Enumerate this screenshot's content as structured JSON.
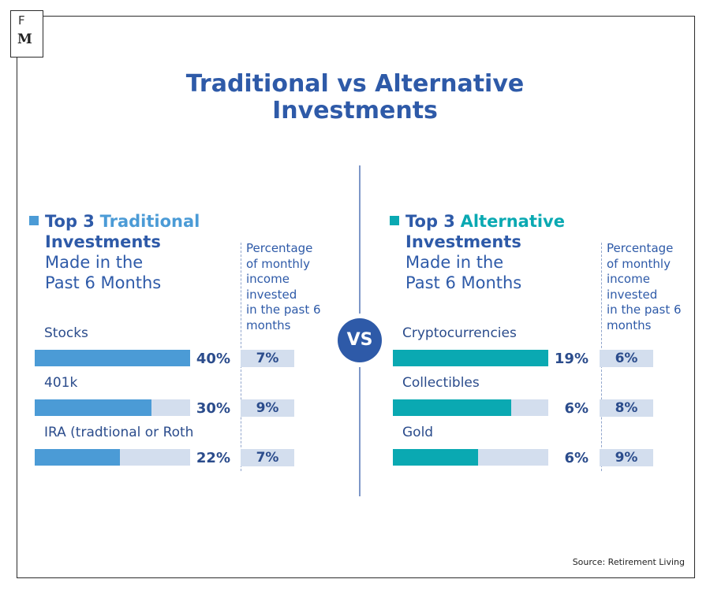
{
  "logo": {
    "line1": "F",
    "line2": "M"
  },
  "title": {
    "line1": "Traditional vs Alternative",
    "line2": "Investments"
  },
  "vs_label": "VS",
  "colors": {
    "traditional": "#4b9bd6",
    "alternative": "#0aa9b2",
    "track": "#d3deee",
    "navy": "#2e5aa8"
  },
  "chart_data": [
    {
      "type": "bar",
      "title": "Top 3 Traditional Investments Made in the Past 6 Months",
      "heading": {
        "prefix": "Top 3",
        "accent": "Traditional",
        "line2": "Investments",
        "line3": "Made in the",
        "line4": "Past 6 Months"
      },
      "pct_title_lines": [
        "Percentage",
        "of monthly",
        "income",
        "invested",
        "in the past 6",
        "months"
      ],
      "categories": [
        "Stocks",
        "401k",
        "IRA (tradtional or Roth"
      ],
      "values": [
        40,
        30,
        22
      ],
      "value_labels": [
        "40%",
        "30%",
        "22%"
      ],
      "percentage_of_income": [
        "7%",
        "9%",
        "7%"
      ],
      "xlim": [
        0,
        40
      ]
    },
    {
      "type": "bar",
      "title": "Top 3 Alternative Investments Made in the Past 6 Months",
      "heading": {
        "prefix": "Top 3",
        "accent": "Alternative",
        "line2": "Investments",
        "line3": "Made in the",
        "line4": "Past 6 Months"
      },
      "pct_title_lines": [
        "Percentage",
        "of monthly",
        "income",
        "invested",
        "in the past 6",
        "months"
      ],
      "categories": [
        "Cryptocurrencies",
        "Collectibles",
        "Gold"
      ],
      "values": [
        19,
        6,
        6
      ],
      "value_labels": [
        "19%",
        "6%",
        "6%"
      ],
      "percentage_of_income": [
        "6%",
        "8%",
        "9%"
      ],
      "fill_fraction": [
        1.0,
        0.76,
        0.55
      ]
    }
  ],
  "source": "Source: Retirement Living"
}
